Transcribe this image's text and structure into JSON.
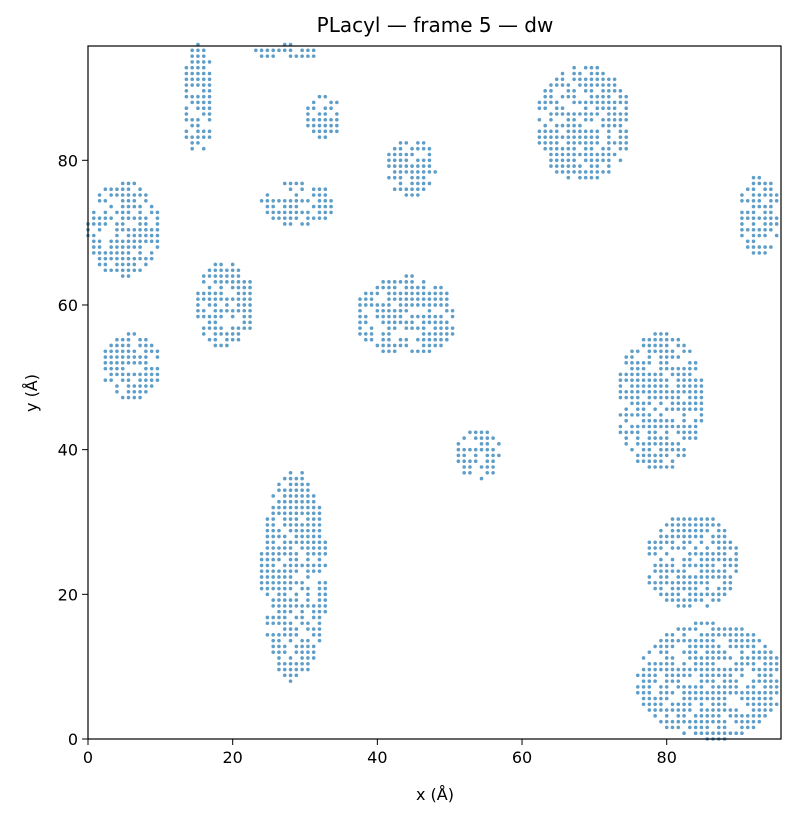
{
  "chart_data": {
    "type": "scatter",
    "title": "PLacyl — frame 5 — dw",
    "xlabel": "x (Å)",
    "ylabel": "y (Å)",
    "xlim": [
      0,
      95.8
    ],
    "ylim": [
      0,
      95.8
    ],
    "xticks": [
      0,
      20,
      40,
      60,
      80
    ],
    "yticks": [
      0,
      20,
      40,
      60,
      80
    ],
    "grid": false,
    "legend": "none",
    "marker_color": "#5e9ec8",
    "grid_step": 0.8,
    "clusters": [
      {
        "name": "top-left-strip",
        "x": [
          13.0,
          17.5
        ],
        "y": [
          81.0,
          96.0
        ]
      },
      {
        "name": "upper-left-block",
        "x": [
          0.0,
          10.0
        ],
        "y": [
          64.0,
          77.0
        ]
      },
      {
        "name": "top-edge-row",
        "x": [
          23.0,
          32.0
        ],
        "y": [
          94.0,
          96.0
        ]
      },
      {
        "name": "upper-mid-patch",
        "x": [
          30.0,
          35.0
        ],
        "y": [
          83.0,
          89.0
        ]
      },
      {
        "name": "mid-upper-band",
        "x": [
          24.0,
          34.0
        ],
        "y": [
          71.0,
          77.0
        ]
      },
      {
        "name": "center-left-patch",
        "x": [
          15.0,
          23.0
        ],
        "y": [
          54.0,
          66.0
        ]
      },
      {
        "name": "center-patch",
        "x": [
          37.0,
          51.0
        ],
        "y": [
          53.0,
          64.0
        ]
      },
      {
        "name": "upper-center-patch",
        "x": [
          41.0,
          48.0
        ],
        "y": [
          75.0,
          83.0
        ]
      },
      {
        "name": "upper-right-patch",
        "x": [
          62.0,
          75.0
        ],
        "y": [
          77.0,
          93.0
        ]
      },
      {
        "name": "right-edge-block",
        "x": [
          90.0,
          95.8
        ],
        "y": [
          67.0,
          78.0
        ]
      },
      {
        "name": "right-mid-block",
        "x": [
          73.0,
          85.0
        ],
        "y": [
          37.0,
          56.0
        ]
      },
      {
        "name": "lower-right-block",
        "x": [
          77.0,
          90.0
        ],
        "y": [
          18.0,
          31.0
        ]
      },
      {
        "name": "bottom-right-block",
        "x": [
          76.0,
          95.8
        ],
        "y": [
          0.0,
          16.0
        ]
      },
      {
        "name": "left-mid-patch",
        "x": [
          2.0,
          10.0
        ],
        "y": [
          47.0,
          56.0
        ]
      },
      {
        "name": "lower-mid-patch",
        "x": [
          24.0,
          33.0
        ],
        "y": [
          8.0,
          37.0
        ]
      },
      {
        "name": "center-lower-patch",
        "x": [
          51.0,
          57.0
        ],
        "y": [
          36.0,
          43.0
        ]
      }
    ]
  }
}
